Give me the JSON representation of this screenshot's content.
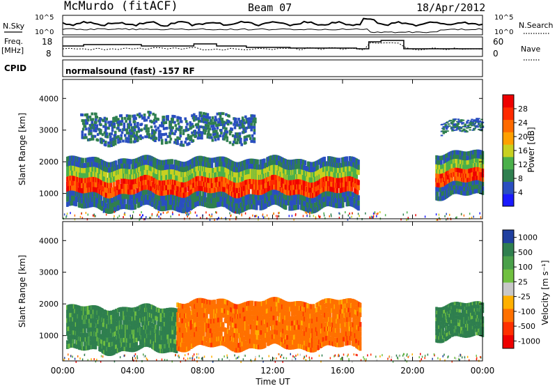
{
  "header": {
    "station": "McMurdo (fitACF)",
    "beam": "Beam 07",
    "date": "18/Apr/2012",
    "cpid_label": "CPID",
    "cpid_text": "normalsound (fast) -157 RF"
  },
  "top_panels": {
    "nsky_label": "N.Sky",
    "nsearch_label": "N.Search",
    "noise_ticks_left": [
      "10^5",
      "10^0"
    ],
    "noise_ticks_right": [
      "10^5",
      "10^0"
    ],
    "freq_label": "Freq.",
    "freq_unit": "[MHz]",
    "freq_ticks": [
      "18",
      "8"
    ],
    "nave_label": "Nave",
    "nave_ticks": [
      "60",
      "0"
    ]
  },
  "chart_data": [
    {
      "type": "heatmap",
      "title": "",
      "ylabel": "Slant Range [km]",
      "yticks": [
        "1000",
        "2000",
        "3000",
        "4000"
      ],
      "ylim": [
        200,
        4600
      ],
      "xlim": [
        0,
        24
      ],
      "colorbar_label": "Power [dB]",
      "colorbar_ticks": [
        "4",
        "8",
        "12",
        "16",
        "20",
        "24",
        "28"
      ],
      "colorbar_colors": [
        "#1a1aff",
        "#2a4fc0",
        "#2f7f4f",
        "#4ab04a",
        "#c8d020",
        "#ffa000",
        "#ff6a00",
        "#ff2a00",
        "#ee0000"
      ],
      "bands": [
        {
          "t0": 0.2,
          "t1": 16.9,
          "r0": 500,
          "r1": 2100,
          "level": "high"
        },
        {
          "t0": 1.0,
          "t1": 11.0,
          "r0": 2600,
          "r1": 3500,
          "level": "low"
        },
        {
          "t0": 21.3,
          "t1": 24.0,
          "r0": 900,
          "r1": 2300,
          "level": "high"
        },
        {
          "t0": 21.6,
          "t1": 24.0,
          "r0": 2900,
          "r1": 3300,
          "level": "low"
        }
      ]
    },
    {
      "type": "heatmap",
      "title": "",
      "xlabel": "Time UT",
      "ylabel": "Slant Range [km]",
      "xticks": [
        "00:00",
        "04:00",
        "08:00",
        "12:00",
        "16:00",
        "20:00",
        "00:00"
      ],
      "yticks": [
        "1000",
        "2000",
        "3000",
        "4000"
      ],
      "ylim": [
        200,
        4600
      ],
      "xlim": [
        0,
        24
      ],
      "colorbar_label": "Velocity [m s⁻¹]",
      "colorbar_ticks": [
        "1000",
        "500",
        "100",
        "25",
        "-25",
        "-100",
        "-500",
        "-1000"
      ],
      "colorbar_colors": [
        "#2040a0",
        "#2f7f4f",
        "#4aa04a",
        "#70c040",
        "#c8c8c8",
        "#ffb000",
        "#ff7000",
        "#ff3000",
        "#ee0000"
      ],
      "bands": [
        {
          "t0": 0.2,
          "t1": 6.5,
          "r0": 500,
          "r1": 1900,
          "sign": "positive"
        },
        {
          "t0": 6.5,
          "t1": 17.0,
          "r0": 600,
          "r1": 2100,
          "sign": "negative"
        },
        {
          "t0": 21.3,
          "t1": 24.0,
          "r0": 900,
          "r1": 2000,
          "sign": "positive"
        }
      ]
    }
  ]
}
